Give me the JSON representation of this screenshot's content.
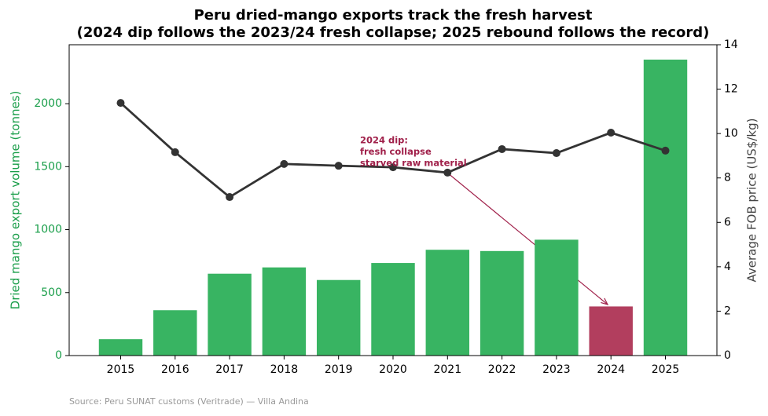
{
  "chart_data": {
    "type": "bar-line",
    "title": [
      "Peru dried-mango exports track the fresh harvest",
      "(2024 dip follows the 2023/24 fresh collapse; 2025 rebound follows the record)"
    ],
    "categories": [
      "2015",
      "2016",
      "2017",
      "2018",
      "2019",
      "2020",
      "2021",
      "2022",
      "2023",
      "2024",
      "2025"
    ],
    "series": [
      {
        "name": "Dried mango export volume (tonnes)",
        "type": "bar",
        "axis": "y",
        "colors": [
          "#38b462",
          "#38b462",
          "#38b462",
          "#38b462",
          "#38b462",
          "#38b462",
          "#38b462",
          "#38b462",
          "#38b462",
          "#b23e5e",
          "#38b462"
        ],
        "values": [
          130,
          360,
          650,
          700,
          600,
          735,
          840,
          830,
          920,
          390,
          2350
        ]
      },
      {
        "name": "Average FOB price (US$/kg)",
        "type": "line",
        "axis": "y2",
        "color": "#333333",
        "values": [
          11.38,
          9.16,
          7.14,
          8.63,
          8.55,
          8.48,
          8.24,
          9.3,
          9.12,
          10.04,
          9.23
        ]
      }
    ],
    "ylabel": "Dried mango export volume (tonnes)",
    "y2label": "Average FOB price (US$/kg)",
    "ylabel_color": "#1a9e4a",
    "ylim": [
      0,
      2468
    ],
    "yticks": [
      0,
      500,
      1000,
      1500,
      2000
    ],
    "y2lim": [
      0,
      14
    ],
    "y2ticks": [
      0,
      2,
      4,
      6,
      8,
      10,
      12,
      14
    ],
    "annotation": {
      "text": [
        "2024 dip:",
        "fresh collapse",
        "starved raw material"
      ],
      "color": "#a0204a"
    },
    "source": "Source: Peru SUNAT customs (Veritrade) — Villa Andina"
  }
}
